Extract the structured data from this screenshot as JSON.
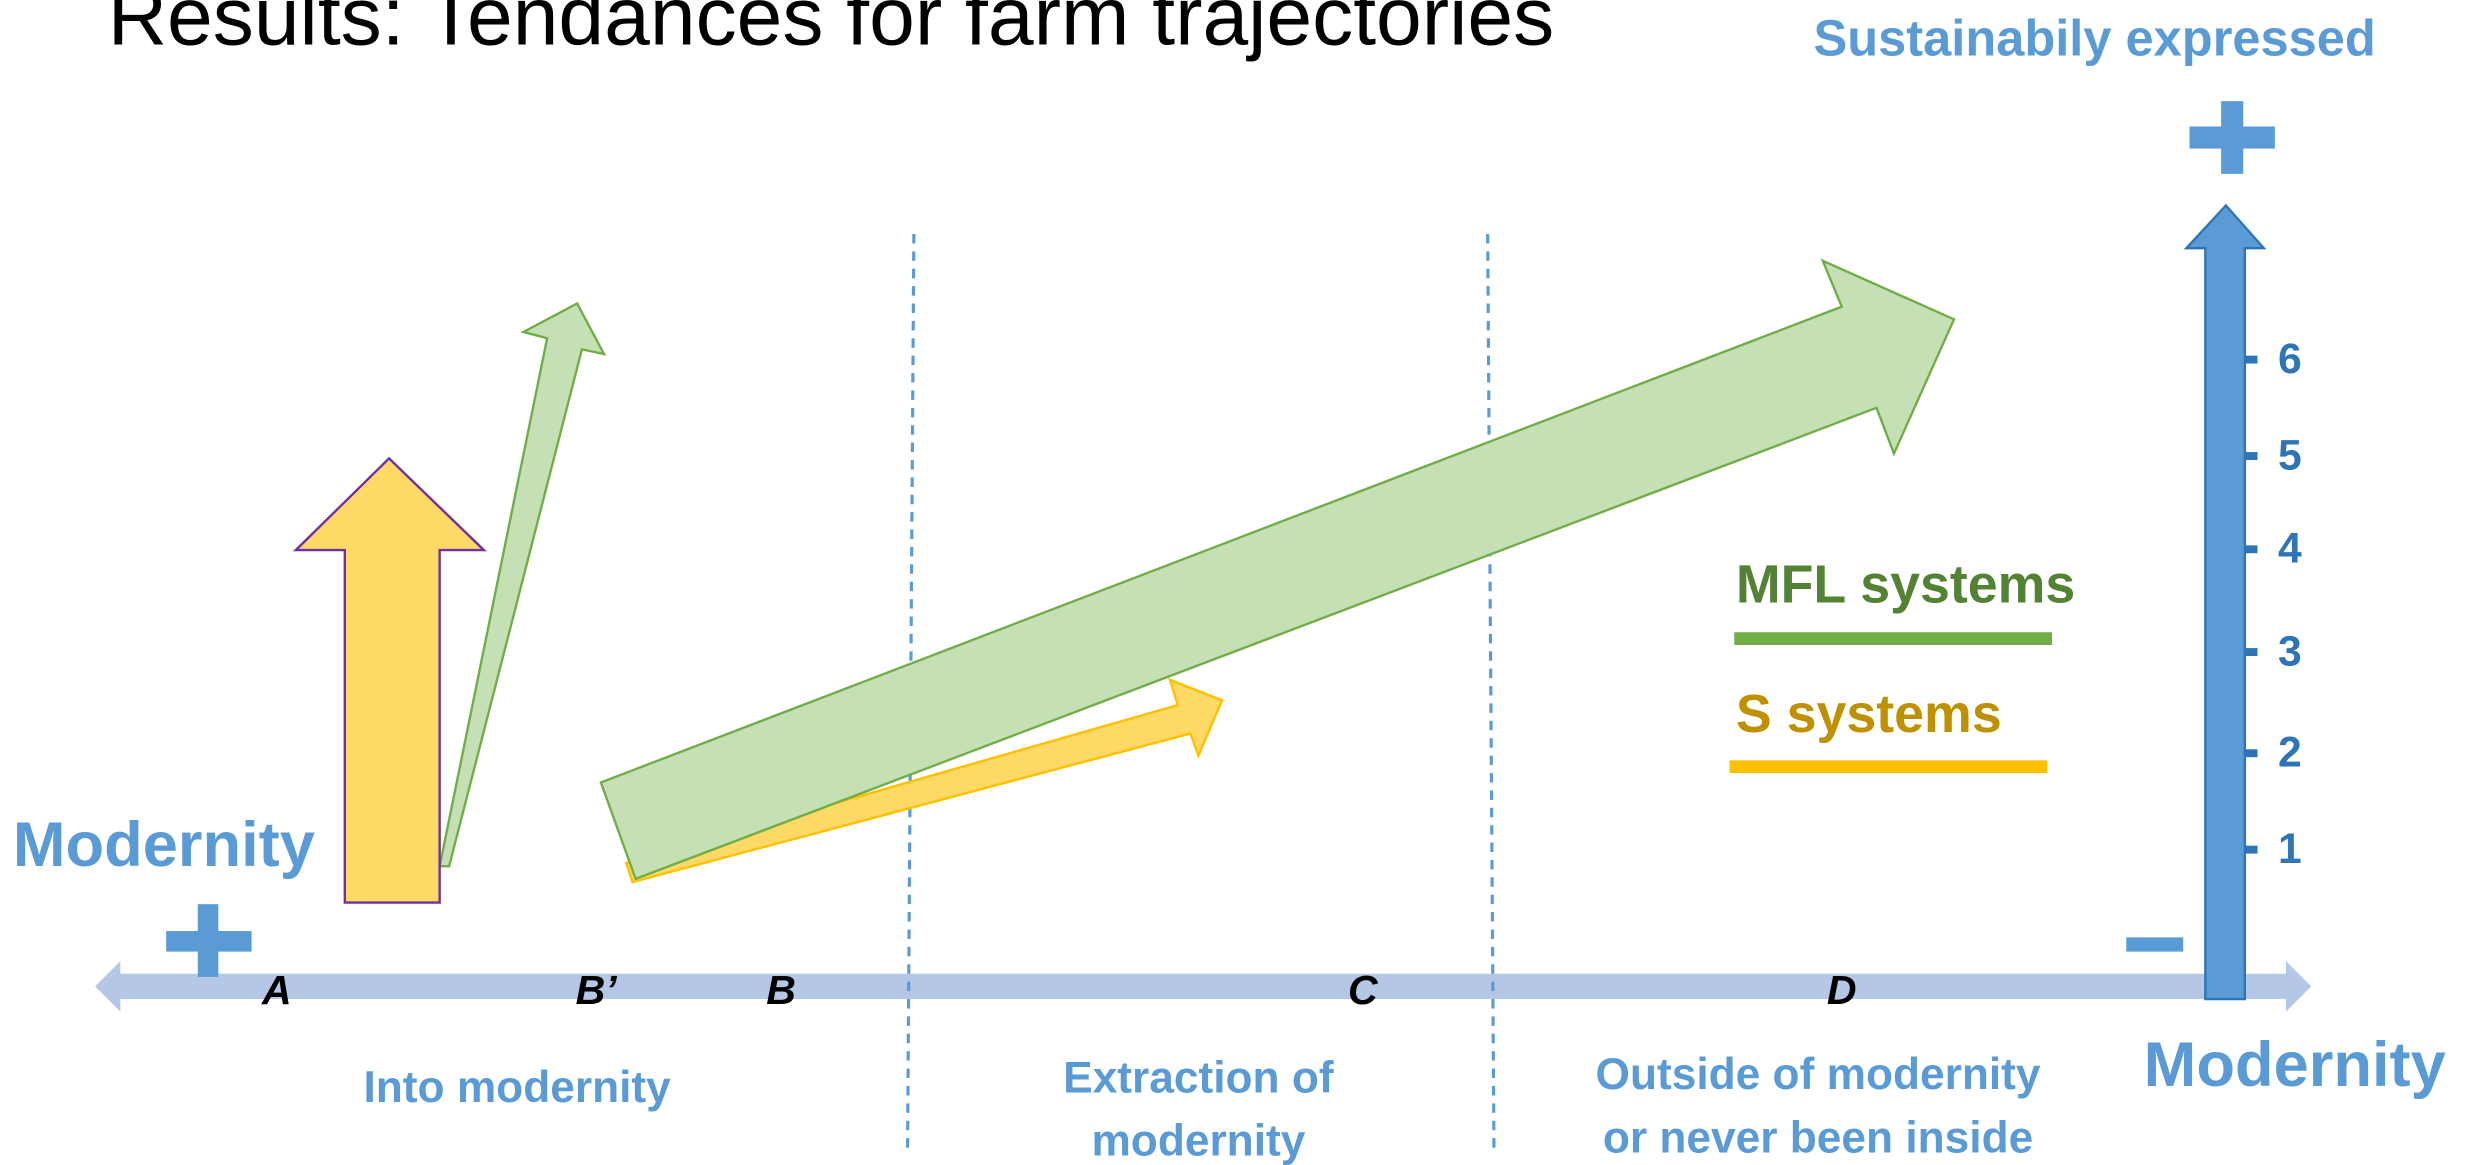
{
  "title": "Results: Tendances for farm trajectories",
  "vertical_axis": {
    "title": "Sustainabily expressed",
    "plus": "+",
    "minus": "−",
    "ticks": [
      "1",
      "2",
      "3",
      "4",
      "5",
      "6"
    ],
    "label": "Modernity"
  },
  "horizontal_axis": {
    "label": "Modernity",
    "plus": "+",
    "points": [
      "A",
      "B’",
      "B",
      "C",
      "D"
    ]
  },
  "zones": [
    [
      "Into modernity"
    ],
    [
      "Extraction of",
      "modernity"
    ],
    [
      "Outside of modernity",
      "or never been inside"
    ]
  ],
  "legend": [
    "MFL systems",
    "S systems"
  ]
}
